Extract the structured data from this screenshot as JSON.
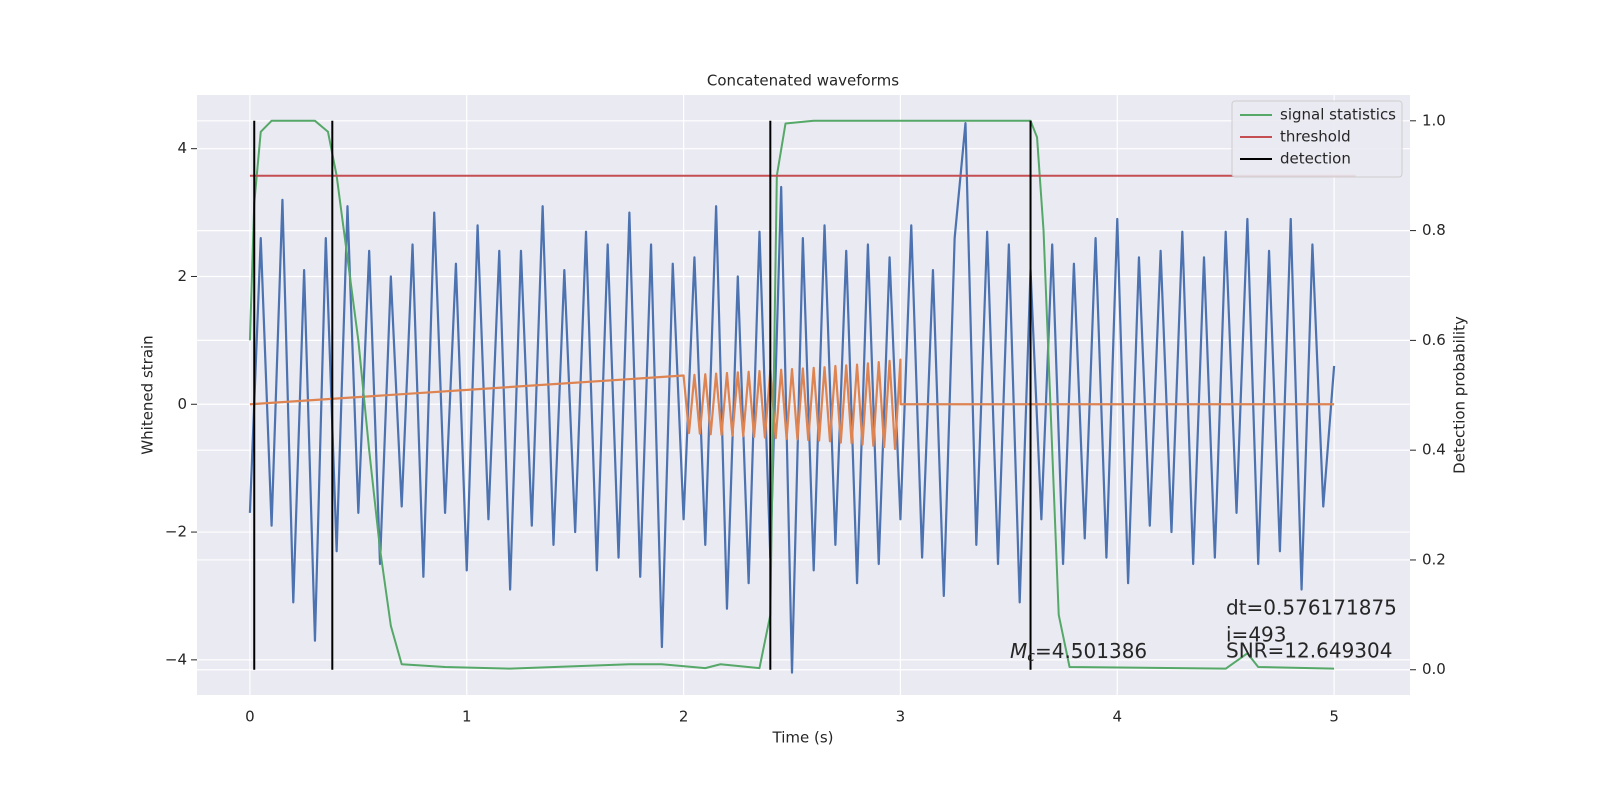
{
  "chart_data": {
    "type": "line",
    "title": "Concatenated waveforms",
    "xlabel": "Time (s)",
    "ylabel": "Whitened strain",
    "y2label": "Detection probability",
    "xlim": [
      -0.244,
      5.35
    ],
    "ylim": [
      -4.55,
      4.84
    ],
    "y2lim": [
      -0.046,
      1.047
    ],
    "xticks": [
      0,
      1,
      2,
      3,
      4,
      5
    ],
    "yticks": [
      {
        "value": -4,
        "label": "−4"
      },
      {
        "value": -2,
        "label": "−2"
      },
      0,
      2,
      4
    ],
    "y2ticks": [
      {
        "value": 0,
        "label": "0.0"
      },
      0.2,
      0.4,
      0.6,
      0.8,
      {
        "value": 1,
        "label": "1.0"
      }
    ],
    "grid": true,
    "legend": "upper right",
    "series": [
      {
        "color": "#4c72b0",
        "axis": "y",
        "x": [
          0,
          0.05,
          0.1,
          0.15,
          0.2,
          0.25,
          0.3,
          0.35,
          0.4,
          0.45,
          0.5,
          0.55,
          0.6,
          0.65,
          0.7,
          0.75,
          0.8,
          0.85,
          0.9,
          0.95,
          1,
          1.05,
          1.1,
          1.15,
          1.2,
          1.25,
          1.3,
          1.35,
          1.4,
          1.45,
          1.5,
          1.55,
          1.6,
          1.65,
          1.7,
          1.75,
          1.8,
          1.85,
          1.9,
          1.95,
          2,
          2.05,
          2.1,
          2.15,
          2.2,
          2.25,
          2.3,
          2.35,
          2.4,
          2.45,
          2.5,
          2.55,
          2.6,
          2.65,
          2.7,
          2.75,
          2.8,
          2.85,
          2.9,
          2.95,
          3,
          3.05,
          3.1,
          3.15,
          3.2,
          3.25,
          3.3,
          3.35,
          3.4,
          3.45,
          3.5,
          3.55,
          3.6,
          3.65,
          3.7,
          3.75,
          3.8,
          3.85,
          3.9,
          3.95,
          4,
          4.05,
          4.1,
          4.15,
          4.2,
          4.25,
          4.3,
          4.35,
          4.4,
          4.45,
          4.5,
          4.55,
          4.6,
          4.65,
          4.7,
          4.75,
          4.8,
          4.85,
          4.9,
          4.95,
          5
        ],
        "values": [
          -1.7,
          2.6,
          -1.9,
          3.2,
          -3.1,
          2.1,
          -3.7,
          2.6,
          -2.3,
          3.1,
          -1.7,
          2.4,
          -2.5,
          2.0,
          -1.6,
          2.5,
          -2.7,
          3.0,
          -1.7,
          2.2,
          -2.6,
          2.8,
          -1.8,
          2.4,
          -2.9,
          2.4,
          -1.9,
          3.1,
          -2.2,
          2.1,
          -2.0,
          2.7,
          -2.6,
          2.5,
          -2.4,
          3.0,
          -2.7,
          2.5,
          -3.8,
          2.2,
          -1.8,
          2.3,
          -2.2,
          3.1,
          -3.2,
          2.0,
          -2.8,
          2.7,
          -2.4,
          3.4,
          -4.2,
          2.6,
          -2.6,
          2.8,
          -2.2,
          2.4,
          -2.8,
          2.5,
          -2.5,
          2.3,
          -1.8,
          2.8,
          -2.4,
          2.1,
          -3.0,
          2.6,
          4.4,
          -2.2,
          2.7,
          -2.5,
          2.5,
          -3.1,
          2.1,
          -1.8,
          2.5,
          -2.5,
          2.2,
          -2.1,
          2.6,
          -2.4,
          2.9,
          -2.8,
          2.3,
          -1.9,
          2.4,
          -2.0,
          2.7,
          -2.5,
          2.3,
          -2.4,
          2.7,
          -1.7,
          2.9,
          -2.5,
          2.4,
          -2.3,
          2.9,
          -2.9,
          2.5,
          -1.6,
          0.6
        ]
      },
      {
        "color": "#dd8452",
        "axis": "y",
        "x": [
          0,
          2,
          2.025,
          2.05,
          2.075,
          2.1,
          2.125,
          2.15,
          2.175,
          2.2,
          2.225,
          2.25,
          2.275,
          2.3,
          2.325,
          2.35,
          2.375,
          2.4,
          2.425,
          2.45,
          2.475,
          2.5,
          2.525,
          2.55,
          2.575,
          2.6,
          2.625,
          2.65,
          2.675,
          2.7,
          2.725,
          2.75,
          2.775,
          2.8,
          2.825,
          2.85,
          2.875,
          2.9,
          2.925,
          2.95,
          2.975,
          3,
          3.001,
          5
        ],
        "values": [
          0,
          0.45,
          -0.45,
          0.46,
          -0.46,
          0.47,
          -0.47,
          0.48,
          -0.48,
          0.49,
          -0.49,
          0.5,
          -0.5,
          0.51,
          -0.51,
          0.52,
          -0.52,
          0.53,
          -0.53,
          0.54,
          -0.54,
          0.55,
          -0.55,
          0.56,
          -0.56,
          0.57,
          -0.57,
          0.58,
          -0.58,
          0.6,
          -0.6,
          0.61,
          -0.61,
          0.62,
          -0.63,
          0.64,
          -0.65,
          0.66,
          -0.67,
          0.68,
          -0.7,
          0.7,
          0,
          0
        ]
      },
      {
        "name": "signal statistics",
        "color": "#55a868",
        "axis": "y2",
        "x": [
          0,
          0.02,
          0.05,
          0.1,
          0.3,
          0.36,
          0.4,
          0.45,
          0.5,
          0.55,
          0.6,
          0.65,
          0.7,
          0.9,
          1.2,
          1.75,
          1.9,
          2.1,
          2.17,
          2.35,
          2.4,
          2.43,
          2.47,
          2.6,
          3.6,
          3.63,
          3.66,
          3.7,
          3.73,
          3.78,
          4.5,
          4.6,
          4.65,
          5
        ],
        "values": [
          0.6,
          0.85,
          0.98,
          1.0,
          1.0,
          0.98,
          0.9,
          0.75,
          0.6,
          0.4,
          0.22,
          0.08,
          0.01,
          0.005,
          0.002,
          0.01,
          0.01,
          0.003,
          0.01,
          0.003,
          0.1,
          0.9,
          0.995,
          1.0,
          1.0,
          0.97,
          0.8,
          0.4,
          0.1,
          0.005,
          0.002,
          0.03,
          0.005,
          0.002
        ]
      },
      {
        "name": "threshold",
        "color": "#c44e52",
        "axis": "y2",
        "x": [
          0,
          5.1
        ],
        "values": [
          0.9,
          0.9
        ]
      },
      {
        "name": "detection",
        "color": "#000000",
        "axis": "y2",
        "kind": "vlines",
        "x": [
          0.02,
          0.38,
          2.4,
          3.6
        ],
        "values": [
          1,
          1,
          1,
          1
        ]
      }
    ],
    "annotations": [
      {
        "symbol": "M",
        "subscript": "c",
        "text": "=4.501386"
      },
      {
        "text": "dt=0.576171875"
      },
      {
        "text": " i=493"
      },
      {
        "text": "SNR=12.649304"
      }
    ]
  }
}
